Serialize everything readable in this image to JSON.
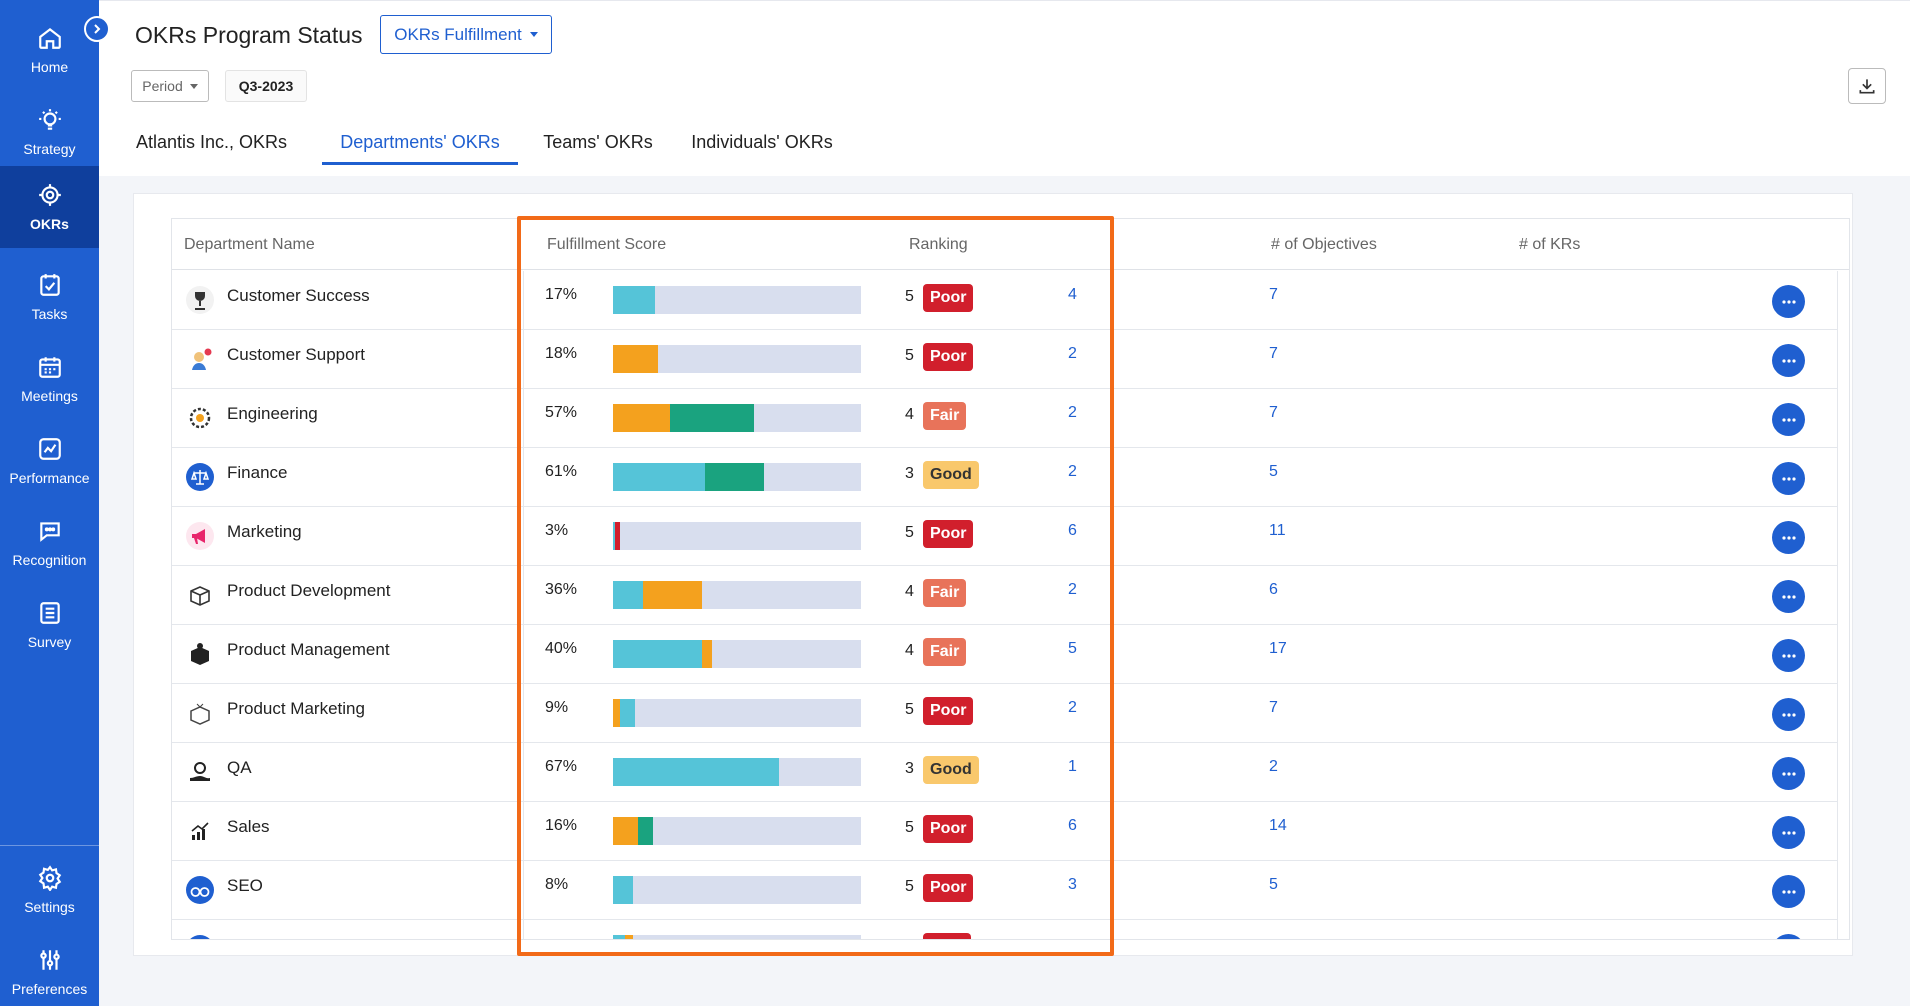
{
  "sidebar": {
    "items": [
      {
        "label": "Home",
        "icon": "home-icon"
      },
      {
        "label": "Strategy",
        "icon": "lightbulb-icon"
      },
      {
        "label": "OKRs",
        "icon": "target-icon",
        "active": true
      },
      {
        "label": "Tasks",
        "icon": "checklist-icon"
      },
      {
        "label": "Meetings",
        "icon": "calendar-icon"
      },
      {
        "label": "Performance",
        "icon": "chart-icon"
      },
      {
        "label": "Recognition",
        "icon": "chat-icon"
      },
      {
        "label": "Survey",
        "icon": "list-icon"
      }
    ],
    "bottom_items": [
      {
        "label": "Settings",
        "icon": "gear-icon"
      },
      {
        "label": "Preferences",
        "icon": "sliders-icon"
      }
    ]
  },
  "header": {
    "title": "OKRs Program Status",
    "view_dropdown": "OKRs Fulfillment",
    "period_label": "Period",
    "period_value": "Q3-2023"
  },
  "tabs": [
    {
      "label": "Atlantis Inc., OKRs",
      "active": false
    },
    {
      "label": "Departments' OKRs",
      "active": true
    },
    {
      "label": "Teams' OKRs",
      "active": false
    },
    {
      "label": "Individuals' OKRs",
      "active": false
    }
  ],
  "table": {
    "columns": [
      "Department Name",
      "Fulfillment Score",
      "Ranking",
      "# of Objectives",
      "# of KRs"
    ],
    "rows": [
      {
        "name": "Customer Success",
        "icon": "trophy-icon",
        "score": "17%",
        "segments": [
          {
            "color": "#55c4d8",
            "value": 17
          }
        ],
        "rank": "5",
        "rank_label": "Poor",
        "rank_class": "poor",
        "objectives": "4",
        "krs": "7"
      },
      {
        "name": "Customer Support",
        "icon": "support-agent-icon",
        "score": "18%",
        "segments": [
          {
            "color": "#f4a11e",
            "value": 18
          }
        ],
        "rank": "5",
        "rank_label": "Poor",
        "rank_class": "poor",
        "objectives": "2",
        "krs": "7"
      },
      {
        "name": "Engineering",
        "icon": "gear-icon",
        "score": "57%",
        "segments": [
          {
            "color": "#f4a11e",
            "value": 23
          },
          {
            "color": "#1aa37f",
            "value": 34
          }
        ],
        "rank": "4",
        "rank_label": "Fair",
        "rank_class": "fair",
        "objectives": "2",
        "krs": "7"
      },
      {
        "name": "Finance",
        "icon": "scale-icon",
        "score": "61%",
        "segments": [
          {
            "color": "#55c4d8",
            "value": 37
          },
          {
            "color": "#1aa37f",
            "value": 24
          }
        ],
        "rank": "3",
        "rank_label": "Good",
        "rank_class": "good",
        "objectives": "2",
        "krs": "5"
      },
      {
        "name": "Marketing",
        "icon": "megaphone-icon",
        "score": "3%",
        "segments": [
          {
            "color": "#55c4d8",
            "value": 1
          },
          {
            "color": "#d11f2c",
            "value": 2
          }
        ],
        "rank": "5",
        "rank_label": "Poor",
        "rank_class": "poor",
        "objectives": "6",
        "krs": "11"
      },
      {
        "name": "Product Development",
        "icon": "box-icon",
        "score": "36%",
        "segments": [
          {
            "color": "#55c4d8",
            "value": 12
          },
          {
            "color": "#f4a11e",
            "value": 24
          }
        ],
        "rank": "4",
        "rank_label": "Fair",
        "rank_class": "fair",
        "objectives": "2",
        "krs": "6"
      },
      {
        "name": "Product Management",
        "icon": "package-icon",
        "score": "40%",
        "segments": [
          {
            "color": "#55c4d8",
            "value": 36
          },
          {
            "color": "#f4a11e",
            "value": 4
          }
        ],
        "rank": "4",
        "rank_label": "Fair",
        "rank_class": "fair",
        "objectives": "5",
        "krs": "17"
      },
      {
        "name": "Product Marketing",
        "icon": "open-box-icon",
        "score": "9%",
        "segments": [
          {
            "color": "#f4a11e",
            "value": 3
          },
          {
            "color": "#55c4d8",
            "value": 6
          }
        ],
        "rank": "5",
        "rank_label": "Poor",
        "rank_class": "poor",
        "objectives": "2",
        "krs": "7"
      },
      {
        "name": "QA",
        "icon": "qa-hand-icon",
        "score": "67%",
        "segments": [
          {
            "color": "#55c4d8",
            "value": 67
          }
        ],
        "rank": "3",
        "rank_label": "Good",
        "rank_class": "good",
        "objectives": "1",
        "krs": "2"
      },
      {
        "name": "Sales",
        "icon": "growth-chart-icon",
        "score": "16%",
        "segments": [
          {
            "color": "#f4a11e",
            "value": 10
          },
          {
            "color": "#1aa37f",
            "value": 6
          }
        ],
        "rank": "5",
        "rank_label": "Poor",
        "rank_class": "poor",
        "objectives": "6",
        "krs": "14"
      },
      {
        "name": "SEO",
        "icon": "binoculars-icon",
        "score": "8%",
        "segments": [
          {
            "color": "#55c4d8",
            "value": 8
          }
        ],
        "rank": "5",
        "rank_label": "Poor",
        "rank_class": "poor",
        "objectives": "3",
        "krs": "5"
      },
      {
        "name": "",
        "icon": "dept-icon",
        "score": "",
        "segments": [
          {
            "color": "#55c4d8",
            "value": 5
          },
          {
            "color": "#f4a11e",
            "value": 3
          }
        ],
        "rank": "",
        "rank_label": "",
        "rank_class": "poor",
        "objectives": "",
        "krs": ""
      }
    ]
  },
  "colors": {
    "brand": "#1f5fd0",
    "highlight": "#f26a18"
  }
}
